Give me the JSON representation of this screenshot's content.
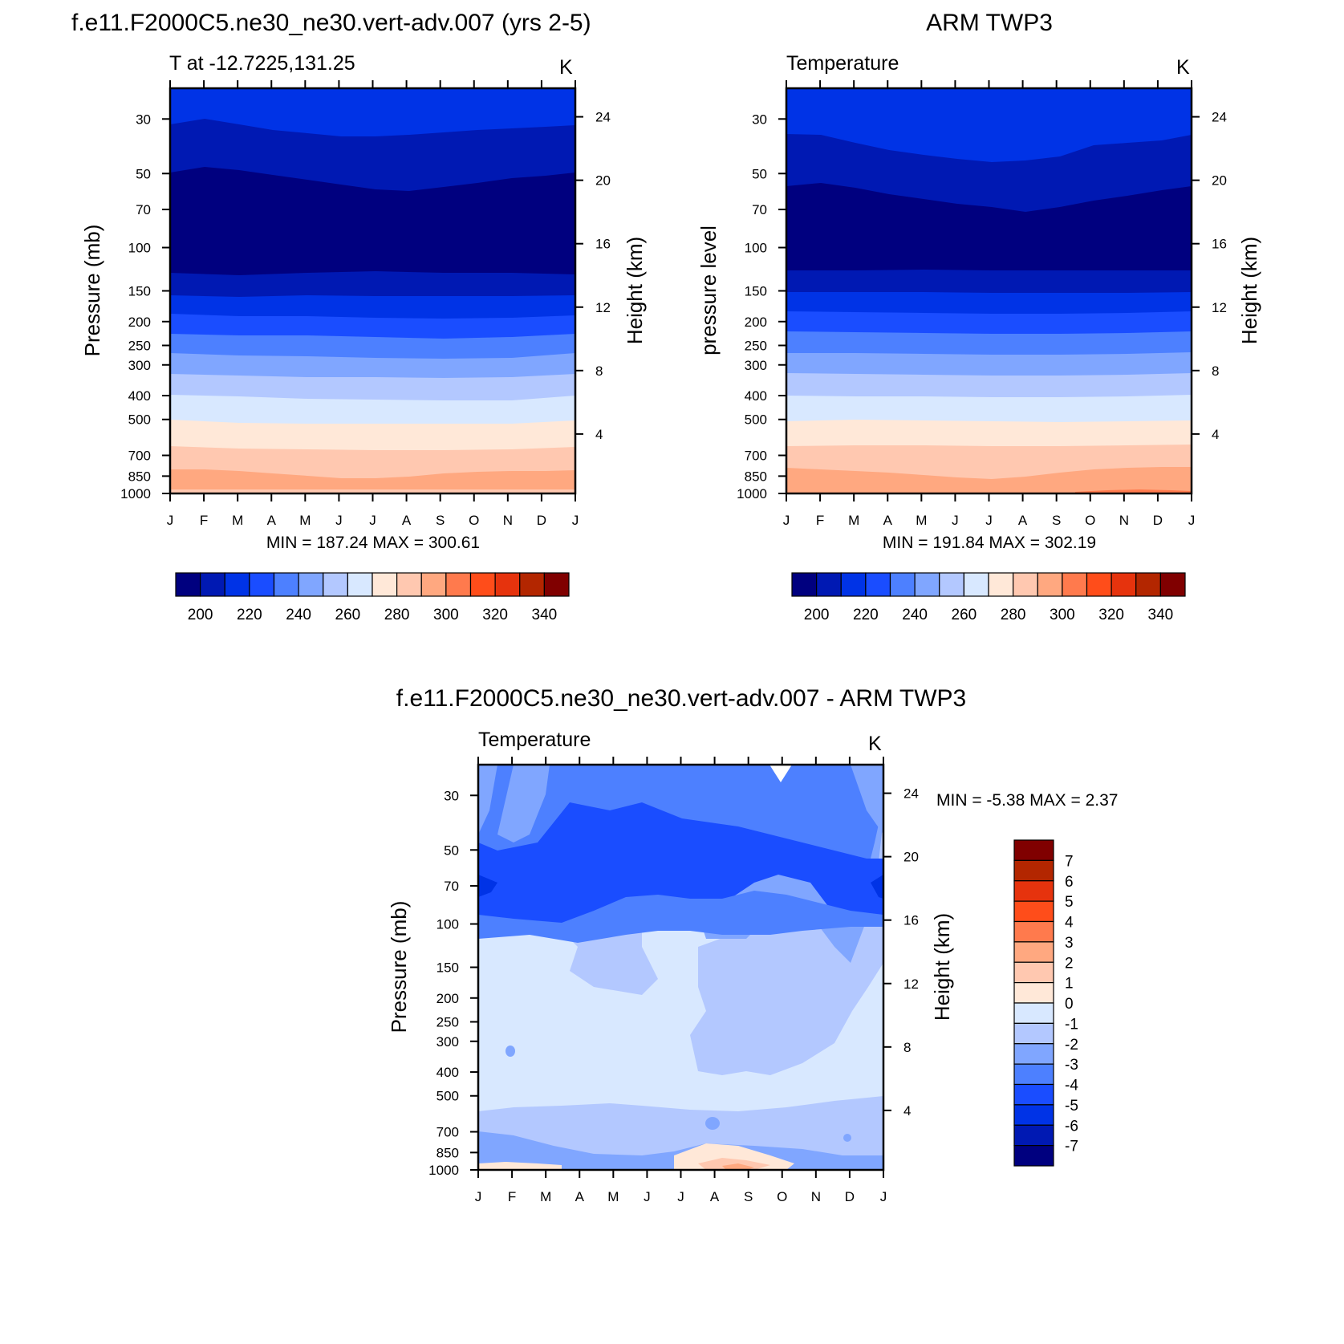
{
  "chart_data": [
    {
      "id": "model",
      "type": "heatmap",
      "title": "f.e11.F2000C5.ne30_ne30.vert-adv.007 (yrs 2-5)",
      "subtitle_left": "T at -12.7225,131.25",
      "subtitle_right": "K",
      "ylabel": "Pressure (mb)",
      "ylabel_right": "Height (km)",
      "months": [
        "J",
        "F",
        "M",
        "A",
        "M",
        "J",
        "J",
        "A",
        "S",
        "O",
        "N",
        "D",
        "J"
      ],
      "pressure_ticks": [
        "30",
        "50",
        "70",
        "100",
        "150",
        "200",
        "250",
        "300",
        "400",
        "500",
        "700",
        "850",
        "1000"
      ],
      "height_ticks": [
        "24",
        "20",
        "16",
        "12",
        "8",
        "4"
      ],
      "min_max": "MIN = 187.24 MAX = 300.61",
      "colorbar_labels": [
        "200",
        "220",
        "240",
        "260",
        "280",
        "300",
        "320",
        "340"
      ],
      "band_boundaries_months": [
        0,
        1,
        2,
        3,
        4,
        5,
        6,
        7,
        8,
        9,
        10,
        11,
        12
      ]
    },
    {
      "id": "obs",
      "type": "heatmap",
      "title": "ARM TWP3",
      "subtitle_left": "Temperature",
      "subtitle_right": "K",
      "ylabel": "pressure level",
      "ylabel_right": "Height (km)",
      "months": [
        "J",
        "F",
        "M",
        "A",
        "M",
        "J",
        "J",
        "A",
        "S",
        "O",
        "N",
        "D",
        "J"
      ],
      "pressure_ticks": [
        "30",
        "50",
        "70",
        "100",
        "150",
        "200",
        "250",
        "300",
        "400",
        "500",
        "700",
        "850",
        "1000"
      ],
      "height_ticks": [
        "24",
        "20",
        "16",
        "12",
        "8",
        "4"
      ],
      "min_max": "MIN = 191.84 MAX = 302.19",
      "colorbar_labels": [
        "200",
        "220",
        "240",
        "260",
        "280",
        "300",
        "320",
        "340"
      ]
    },
    {
      "id": "diff",
      "type": "heatmap",
      "title": "f.e11.F2000C5.ne30_ne30.vert-adv.007 - ARM TWP3",
      "subtitle_left": "Temperature",
      "subtitle_right": "K",
      "ylabel": "Pressure (mb)",
      "ylabel_right": "Height (km)",
      "months": [
        "J",
        "F",
        "M",
        "A",
        "M",
        "J",
        "J",
        "A",
        "S",
        "O",
        "N",
        "D",
        "J"
      ],
      "pressure_ticks": [
        "30",
        "50",
        "70",
        "100",
        "150",
        "200",
        "250",
        "300",
        "400",
        "500",
        "700",
        "850",
        "1000"
      ],
      "height_ticks": [
        "24",
        "20",
        "16",
        "12",
        "8",
        "4"
      ],
      "min_max": "MIN =  -5.38 MAX =   2.37",
      "colorbar_labels": [
        "7",
        "6",
        "5",
        "4",
        "3",
        "2",
        "1",
        "0",
        "-1",
        "-2",
        "-3",
        "-4",
        "-5",
        "-6",
        "-7"
      ]
    }
  ],
  "colors": {
    "temp_scale": [
      "#00007f",
      "#0019b3",
      "#0033e6",
      "#1a4dff",
      "#4d80ff",
      "#80a6ff",
      "#b3c8ff",
      "#d8e8ff",
      "#ffe8d8",
      "#ffc8b0",
      "#ffa880",
      "#ff7a4d",
      "#ff4d1a",
      "#e6330d",
      "#b32600",
      "#800000"
    ],
    "diff_scale": [
      "#800000",
      "#b32600",
      "#e6330d",
      "#ff4d1a",
      "#ff7a4d",
      "#ffa880",
      "#ffc8b0",
      "#ffe8d8",
      "#d8e8ff",
      "#b3c8ff",
      "#80a6ff",
      "#4d80ff",
      "#1a4dff",
      "#0033e6",
      "#0019b3",
      "#00007f"
    ]
  }
}
